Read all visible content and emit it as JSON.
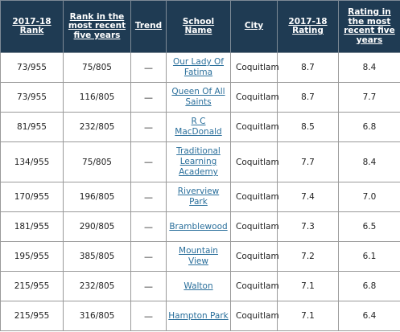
{
  "headers": {
    "rank_2017_18": "2017-18 Rank",
    "rank_recent": "Rank in the most recent five years",
    "trend": "Trend",
    "school_name": "School Name",
    "city": "City",
    "rating_2017_18": "2017-18 Rating",
    "rating_recent": "Rating in the most recent five years"
  },
  "rows": [
    {
      "rank": "73/955",
      "rank_recent": "75/805",
      "trend": "—",
      "school": "Our Lady Of Fatima",
      "city": "Coquitlam",
      "rating": "8.7",
      "rating_recent": "8.4"
    },
    {
      "rank": "73/955",
      "rank_recent": "116/805",
      "trend": "—",
      "school": "Queen Of All Saints",
      "city": "Coquitlam",
      "rating": "8.7",
      "rating_recent": "7.7"
    },
    {
      "rank": "81/955",
      "rank_recent": "232/805",
      "trend": "—",
      "school": "R C MacDonald",
      "city": "Coquitlam",
      "rating": "8.5",
      "rating_recent": "6.8"
    },
    {
      "rank": "134/955",
      "rank_recent": "75/805",
      "trend": "—",
      "school": "Traditional Learning Academy",
      "city": "Coquitlam",
      "rating": "7.7",
      "rating_recent": "8.4"
    },
    {
      "rank": "170/955",
      "rank_recent": "196/805",
      "trend": "—",
      "school": "Riverview Park",
      "city": "Coquitlam",
      "rating": "7.4",
      "rating_recent": "7.0"
    },
    {
      "rank": "181/955",
      "rank_recent": "290/805",
      "trend": "—",
      "school": "Bramblewood",
      "city": "Coquitlam",
      "rating": "7.3",
      "rating_recent": "6.5"
    },
    {
      "rank": "195/955",
      "rank_recent": "385/805",
      "trend": "—",
      "school": "Mountain View",
      "city": "Coquitlam",
      "rating": "7.2",
      "rating_recent": "6.1"
    },
    {
      "rank": "215/955",
      "rank_recent": "232/805",
      "trend": "—",
      "school": "Walton",
      "city": "Coquitlam",
      "rating": "7.1",
      "rating_recent": "6.8"
    },
    {
      "rank": "215/955",
      "rank_recent": "316/805",
      "trend": "—",
      "school": "Hampton Park",
      "city": "Coquitlam",
      "rating": "7.1",
      "rating_recent": "6.4"
    }
  ]
}
